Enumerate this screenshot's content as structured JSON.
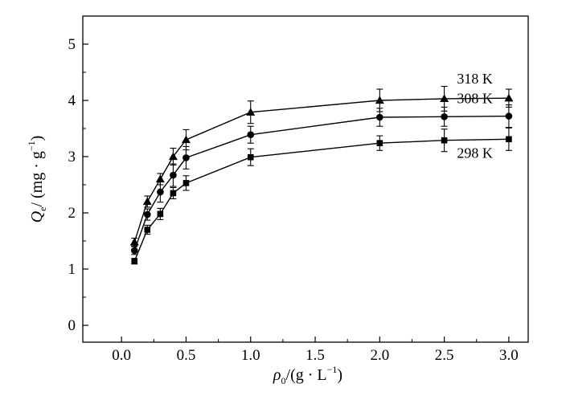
{
  "chart_data": {
    "type": "line",
    "title": "",
    "xlabel": {
      "symbol": "ρ",
      "sub": "0",
      "unit_pre": "/(g · L",
      "sup": "−1",
      "unit_post": ")"
    },
    "ylabel": {
      "symbol": "Q",
      "sub": "e",
      "unit_pre": "/ (mg · g",
      "sup": "−1",
      "unit_post": ")"
    },
    "xlim": [
      -0.3,
      3.15
    ],
    "ylim": [
      -0.3,
      5.5
    ],
    "x_ticks": [
      "0.0",
      "0.5",
      "1.0",
      "1.5",
      "2.0",
      "2.5",
      "3.0"
    ],
    "y_ticks": [
      "0",
      "1",
      "2",
      "3",
      "4",
      "5"
    ],
    "x": [
      0.1,
      0.2,
      0.3,
      0.4,
      0.5,
      1.0,
      2.0,
      2.5,
      3.0
    ],
    "series": [
      {
        "name": "318 K",
        "marker": "triangle",
        "values": [
          1.48,
          2.2,
          2.6,
          3.0,
          3.3,
          3.79,
          4.0,
          4.03,
          4.04
        ],
        "errors": [
          0.07,
          0.1,
          0.1,
          0.15,
          0.18,
          0.2,
          0.2,
          0.22,
          0.16
        ]
      },
      {
        "name": "308 K",
        "marker": "circle",
        "values": [
          1.33,
          1.97,
          2.37,
          2.67,
          2.98,
          3.39,
          3.7,
          3.71,
          3.72
        ],
        "errors": [
          0.07,
          0.1,
          0.18,
          0.2,
          0.2,
          0.15,
          0.16,
          0.17,
          0.2
        ]
      },
      {
        "name": "298 K",
        "marker": "square",
        "values": [
          1.14,
          1.7,
          1.98,
          2.35,
          2.53,
          2.99,
          3.24,
          3.29,
          3.31
        ],
        "errors": [
          0.05,
          0.08,
          0.1,
          0.1,
          0.13,
          0.15,
          0.13,
          0.2,
          0.2
        ]
      }
    ],
    "legend": "inline labels near right end of each series",
    "grid": false
  }
}
